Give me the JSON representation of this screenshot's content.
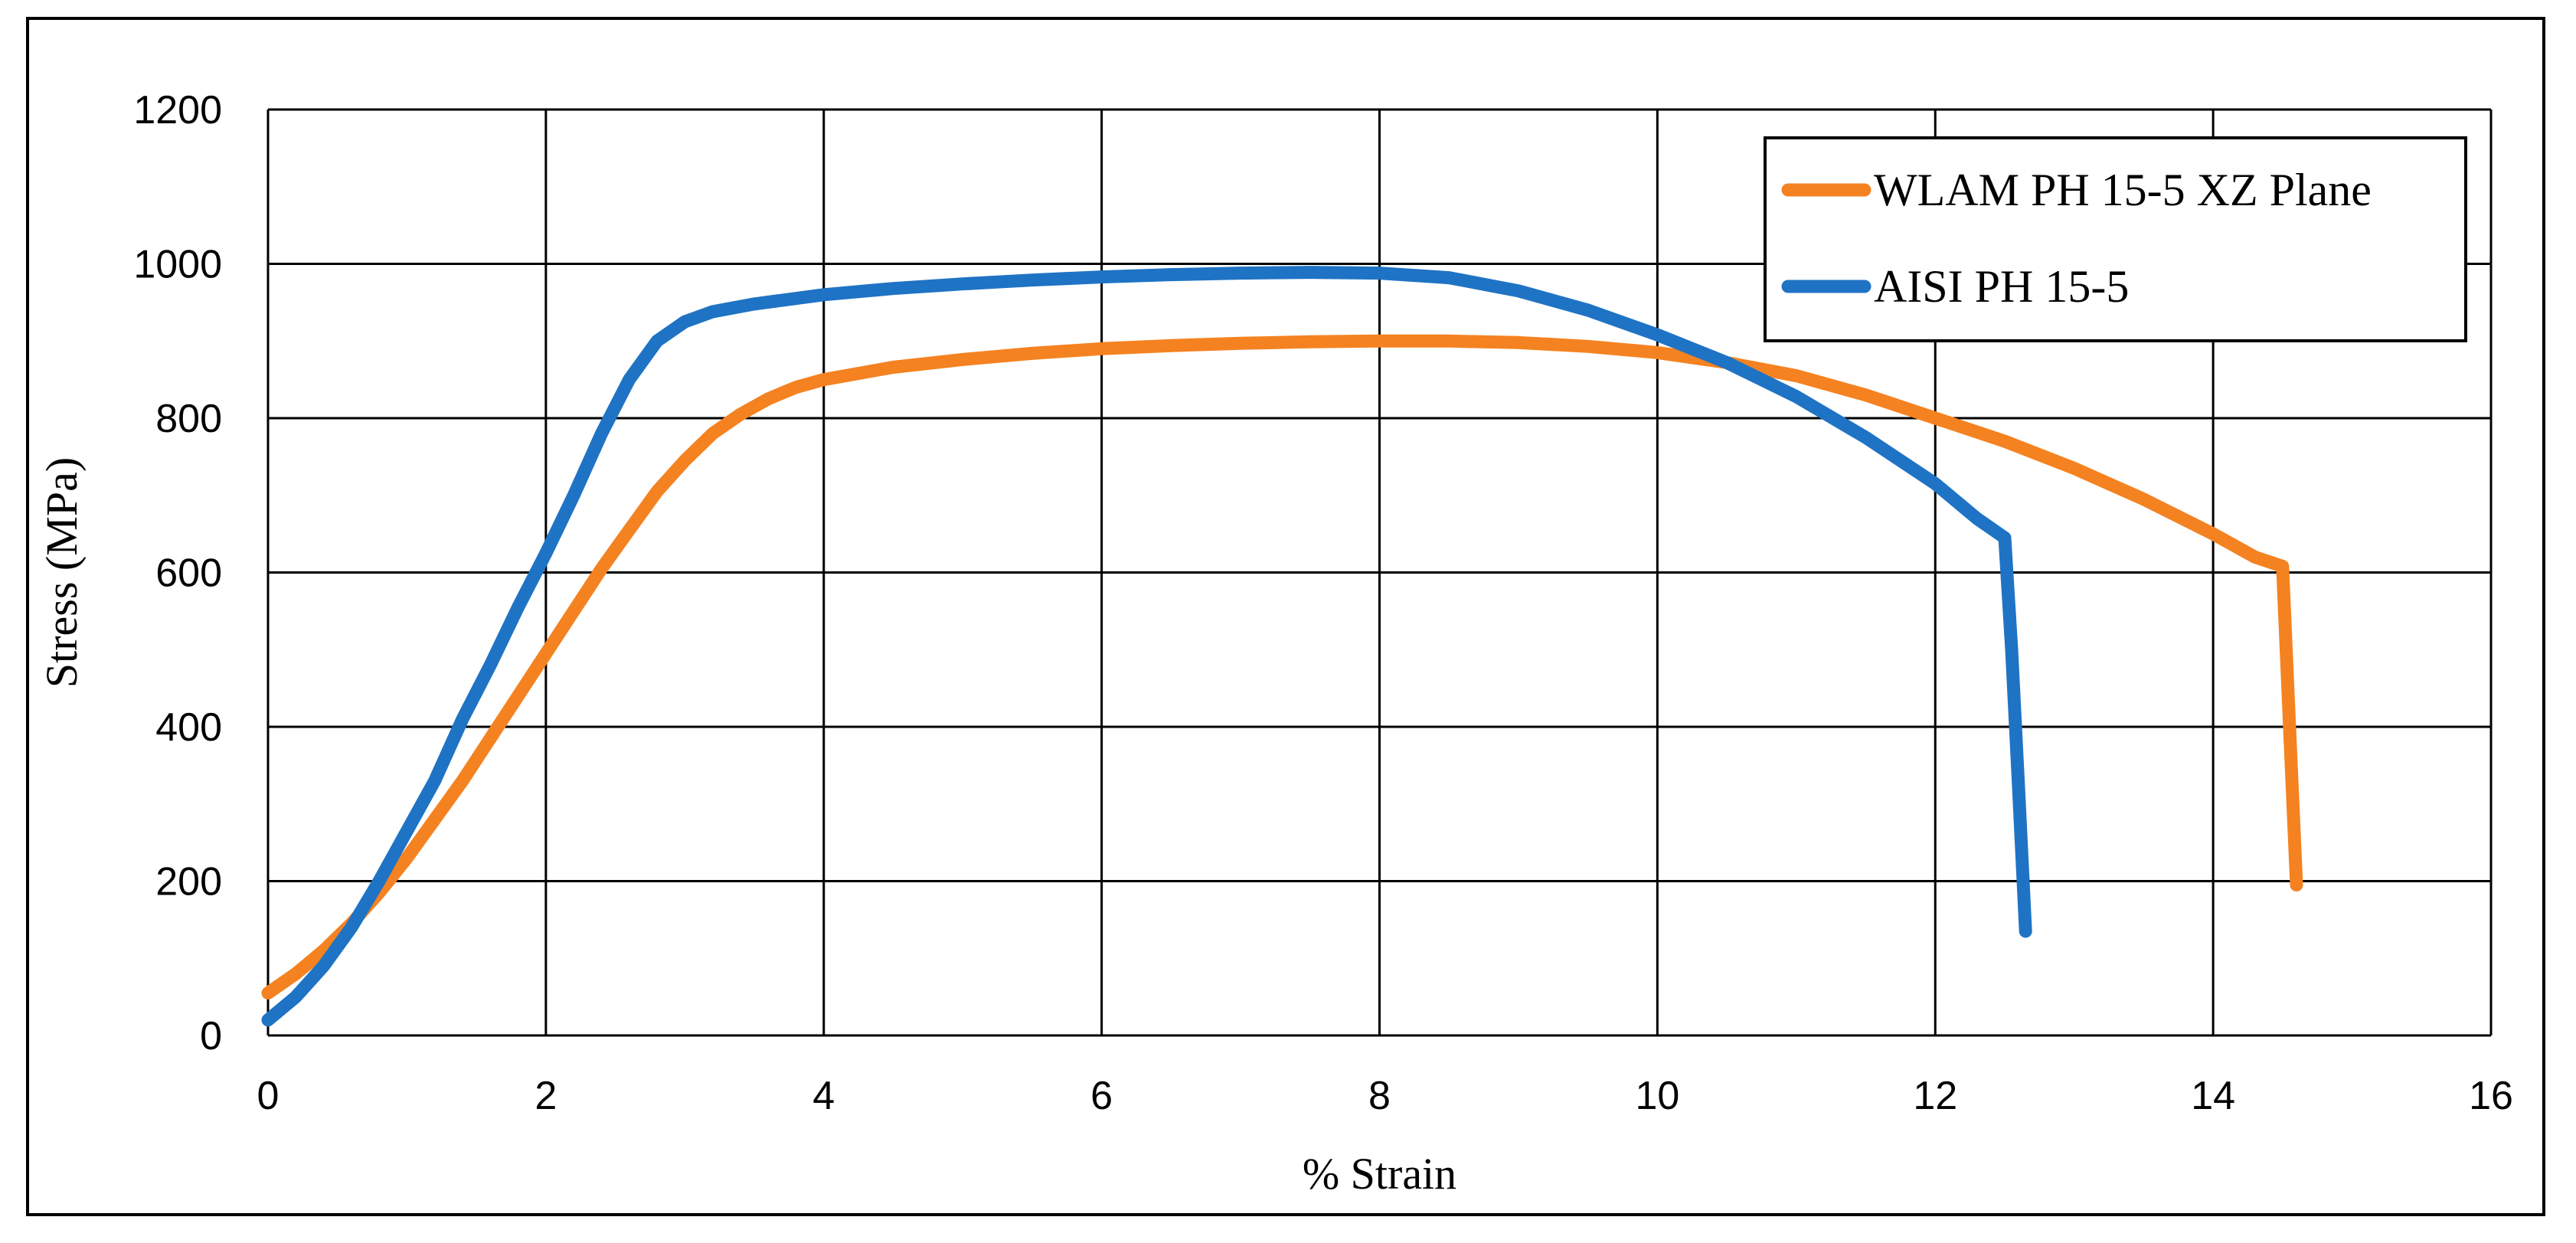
{
  "chart_data": {
    "type": "line",
    "title": "",
    "xlabel": "% Strain",
    "ylabel": "Stress (MPa)",
    "xlim": [
      0,
      16
    ],
    "ylim": [
      0,
      1200
    ],
    "xticks": [
      0,
      2,
      4,
      6,
      8,
      10,
      12,
      14,
      16
    ],
    "yticks": [
      0,
      200,
      400,
      600,
      800,
      1000,
      1200
    ],
    "grid": true,
    "legend_position": "top-right",
    "series": [
      {
        "name": "WLAM PH 15-5 XZ Plane",
        "color": "#f58220",
        "x": [
          0,
          0.2,
          0.4,
          0.6,
          0.8,
          1.0,
          1.2,
          1.4,
          1.6,
          1.8,
          2.0,
          2.2,
          2.4,
          2.6,
          2.8,
          3.0,
          3.2,
          3.4,
          3.6,
          3.8,
          4.0,
          4.5,
          5.0,
          5.5,
          6.0,
          6.5,
          7.0,
          7.5,
          8.0,
          8.5,
          9.0,
          9.5,
          10.0,
          10.5,
          11.0,
          11.5,
          12.0,
          12.5,
          13.0,
          13.5,
          14.0,
          14.3,
          14.5,
          14.55,
          14.6
        ],
        "y": [
          55,
          80,
          110,
          145,
          185,
          230,
          280,
          330,
          385,
          440,
          495,
          550,
          605,
          655,
          705,
          745,
          780,
          805,
          825,
          840,
          850,
          866,
          876,
          884,
          890,
          894,
          897,
          899,
          900,
          900,
          898,
          893,
          885,
          872,
          855,
          830,
          800,
          770,
          735,
          695,
          650,
          620,
          608,
          400,
          195
        ]
      },
      {
        "name": "AISI PH 15-5",
        "color": "#1f73c4",
        "x": [
          0,
          0.2,
          0.4,
          0.6,
          0.8,
          1.0,
          1.2,
          1.4,
          1.6,
          1.8,
          2.0,
          2.2,
          2.4,
          2.6,
          2.8,
          3.0,
          3.2,
          3.5,
          4.0,
          4.5,
          5.0,
          5.5,
          6.0,
          6.5,
          7.0,
          7.5,
          8.0,
          8.5,
          9.0,
          9.5,
          10.0,
          10.5,
          11.0,
          11.5,
          12.0,
          12.3,
          12.5,
          12.55,
          12.6,
          12.65
        ],
        "y": [
          20,
          50,
          90,
          140,
          200,
          265,
          330,
          410,
          480,
          555,
          625,
          700,
          780,
          850,
          900,
          925,
          938,
          948,
          960,
          968,
          974,
          979,
          983,
          986,
          988,
          989,
          988,
          982,
          965,
          940,
          908,
          872,
          828,
          775,
          715,
          670,
          645,
          500,
          320,
          135
        ]
      }
    ]
  }
}
